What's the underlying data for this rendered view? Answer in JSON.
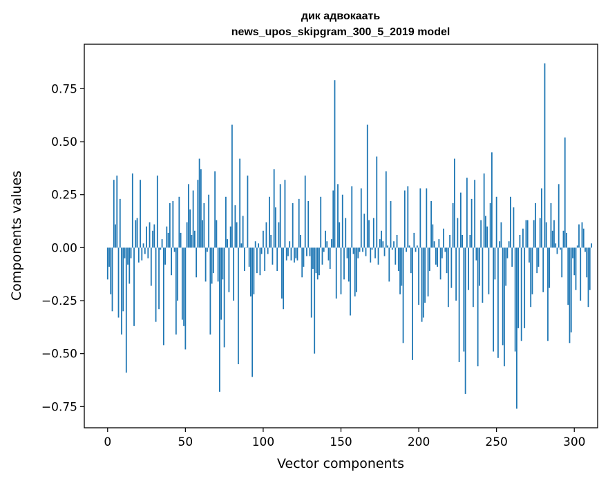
{
  "chart_data": {
    "type": "bar",
    "title": "дик адвокаать",
    "subtitle": "news_upos_skipgram_300_5_2019 model",
    "xlabel": "Vector components",
    "ylabel": "Components values",
    "xlim": [
      -15,
      315
    ],
    "ylim": [
      -0.85,
      0.96
    ],
    "xticks": [
      0,
      50,
      100,
      150,
      200,
      250,
      300
    ],
    "yticks": [
      -0.75,
      -0.5,
      -0.25,
      0.0,
      0.25,
      0.5,
      0.75
    ],
    "xtick_labels": [
      "0",
      "50",
      "100",
      "150",
      "200",
      "250",
      "300"
    ],
    "ytick_labels": [
      "−0.75",
      "−0.50",
      "−0.25",
      "0.00",
      "0.25",
      "0.50",
      "0.75"
    ],
    "bar_color": "#1f77b4",
    "grid": false,
    "series": [
      {
        "values": [
          -0.15,
          -0.09,
          -0.22,
          -0.3,
          0.32,
          0.11,
          0.34,
          -0.33,
          0.23,
          -0.41,
          -0.3,
          -0.05,
          -0.59,
          -0.08,
          -0.17,
          -0.05,
          0.35,
          -0.37,
          0.13,
          0.14,
          -0.07,
          0.32,
          -0.06,
          0.02,
          -0.03,
          0.1,
          -0.05,
          0.12,
          -0.18,
          0.08,
          0.11,
          -0.35,
          0.34,
          -0.29,
          -0.01,
          0.04,
          -0.46,
          -0.08,
          0.1,
          0.07,
          0.21,
          -0.13,
          0.22,
          -0.02,
          -0.41,
          -0.25,
          0.24,
          0.07,
          -0.34,
          -0.37,
          -0.48,
          0.12,
          0.3,
          0.18,
          0.06,
          0.27,
          0.08,
          -0.14,
          0.32,
          0.42,
          0.37,
          0.13,
          0.21,
          -0.16,
          -0.02,
          0.25,
          -0.41,
          -0.17,
          -0.12,
          0.36,
          0.13,
          -0.16,
          -0.68,
          -0.34,
          -0.15,
          -0.47,
          0.24,
          0.04,
          -0.21,
          0.1,
          0.58,
          -0.25,
          0.2,
          0.12,
          -0.55,
          0.42,
          0.02,
          0.15,
          -0.11,
          0.0,
          0.34,
          -0.09,
          -0.23,
          -0.61,
          -0.22,
          0.03,
          -0.12,
          0.02,
          -0.13,
          -0.03,
          0.08,
          -0.11,
          0.12,
          -0.03,
          0.24,
          0.06,
          -0.08,
          0.37,
          0.19,
          -0.11,
          0.12,
          0.3,
          -0.24,
          -0.29,
          0.32,
          -0.06,
          -0.04,
          0.03,
          -0.06,
          0.21,
          -0.07,
          -0.05,
          -0.06,
          0.23,
          0.06,
          -0.14,
          -0.09,
          0.34,
          -0.04,
          0.22,
          -0.04,
          -0.33,
          -0.1,
          -0.5,
          -0.12,
          -0.15,
          -0.13,
          0.24,
          -0.08,
          -0.02,
          0.08,
          0.03,
          -0.06,
          -0.1,
          0.04,
          0.27,
          0.79,
          -0.24,
          0.3,
          0.12,
          -0.22,
          0.25,
          -0.15,
          0.14,
          -0.05,
          -0.16,
          -0.32,
          0.29,
          -0.03,
          -0.23,
          -0.21,
          -0.05,
          -0.02,
          0.28,
          -0.02,
          0.16,
          -0.04,
          0.58,
          0.13,
          -0.07,
          -0.01,
          0.14,
          -0.05,
          0.43,
          -0.08,
          0.04,
          0.08,
          0.03,
          -0.04,
          0.36,
          0.01,
          -0.16,
          0.22,
          -0.01,
          0.03,
          -0.08,
          0.06,
          -0.11,
          -0.22,
          -0.18,
          -0.45,
          0.27,
          -0.02,
          0.29,
          0.01,
          -0.12,
          -0.53,
          0.07,
          -0.02,
          0.01,
          -0.27,
          0.28,
          -0.35,
          -0.33,
          -0.26,
          0.28,
          -0.23,
          -0.11,
          0.22,
          0.11,
          0.03,
          -0.08,
          -0.09,
          0.04,
          -0.15,
          -0.05,
          0.09,
          -0.02,
          -0.12,
          -0.28,
          0.06,
          -0.19,
          0.21,
          0.42,
          -0.25,
          0.14,
          -0.54,
          0.26,
          0.06,
          -0.49,
          -0.69,
          0.33,
          -0.2,
          0.06,
          0.23,
          -0.28,
          0.32,
          -0.06,
          -0.56,
          -0.18,
          0.13,
          -0.26,
          0.35,
          0.15,
          0.1,
          -0.22,
          0.21,
          0.45,
          -0.49,
          -0.15,
          0.24,
          -0.52,
          0.03,
          0.12,
          -0.46,
          -0.56,
          -0.18,
          -0.05,
          0.03,
          0.24,
          -0.09,
          0.19,
          -0.49,
          -0.76,
          -0.38,
          0.06,
          -0.44,
          0.09,
          -0.38,
          0.13,
          0.13,
          -0.07,
          -0.28,
          -0.22,
          0.13,
          0.21,
          -0.12,
          -0.09,
          0.14,
          0.28,
          -0.21,
          0.87,
          0.12,
          -0.44,
          -0.19,
          0.21,
          0.08,
          0.13,
          0.02,
          -0.03,
          0.3,
          -0.01,
          -0.14,
          0.08,
          0.52,
          0.07,
          -0.27,
          -0.45,
          -0.4,
          -0.05,
          -0.13,
          -0.2,
          0.01,
          0.11,
          -0.25,
          0.12,
          0.09,
          -0.02,
          -0.14,
          -0.28,
          -0.2,
          0.02
        ]
      }
    ]
  }
}
